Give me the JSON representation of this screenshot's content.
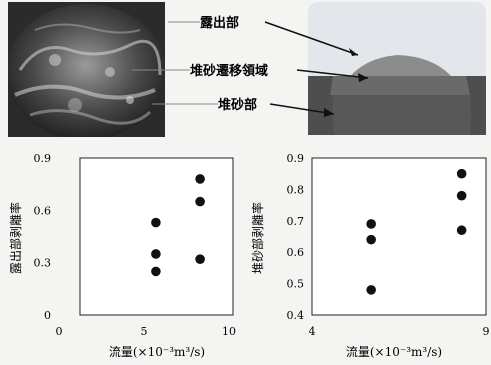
{
  "callouts": {
    "exposed": "露出部",
    "transition": "堆砂遷移領域",
    "deposit": "堆砂部"
  },
  "colors": {
    "sky": "#e3e7ec",
    "dome": "#8c8c8c",
    "transition_band": "#707070",
    "deposit_ground": "#4e4e4e",
    "marker": "#111111"
  },
  "chart_data": [
    {
      "type": "scatter",
      "title": "",
      "xlabel": "流量(×10⁻³m³/s)",
      "ylabel": "露出部剥離率",
      "xlim": [
        0,
        10
      ],
      "ylim": [
        0,
        0.9
      ],
      "xticks": [
        "0",
        "5",
        "10"
      ],
      "yticks": [
        "0",
        "0.3",
        "0.6",
        "0.9"
      ],
      "grid": false,
      "x": [
        5.7,
        5.7,
        5.7,
        8.3,
        8.3,
        8.3
      ],
      "y": [
        0.53,
        0.35,
        0.25,
        0.78,
        0.65,
        0.32
      ]
    },
    {
      "type": "scatter",
      "title": "",
      "xlabel": "流量(×10⁻³m³/s)",
      "ylabel": "堆砂部剥離率",
      "xlim": [
        4,
        9
      ],
      "ylim": [
        0.4,
        0.9
      ],
      "xticks": [
        "4",
        "9"
      ],
      "yticks": [
        "0.4",
        "0.5",
        "0.6",
        "0.7",
        "0.8",
        "0.9"
      ],
      "grid": false,
      "x": [
        5.7,
        5.7,
        5.7,
        8.3,
        8.3,
        8.3
      ],
      "y": [
        0.69,
        0.64,
        0.48,
        0.85,
        0.78,
        0.67
      ]
    }
  ]
}
